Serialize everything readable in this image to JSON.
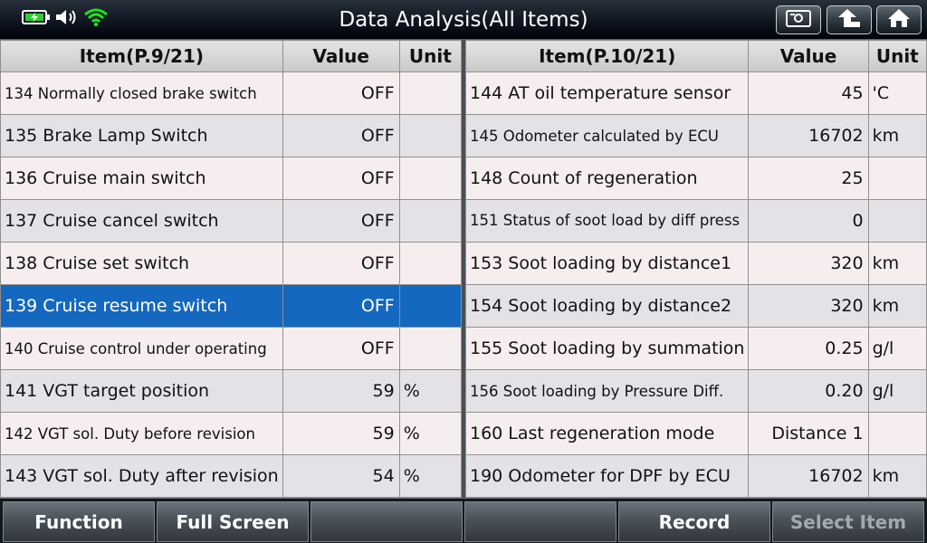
{
  "app": {
    "title": "Data Analysis(All Items)"
  },
  "status_icons": [
    "battery-icon",
    "speaker-icon",
    "wifi-icon"
  ],
  "toolbar_icons": [
    "screenshot-icon",
    "back-icon",
    "home-icon"
  ],
  "colors": {
    "selected_row": "#1468bf",
    "row_odd": "#f6eeee",
    "row_even": "#e5e2e7",
    "wifi": "#19e619",
    "battery": "#2fd02f"
  },
  "left": {
    "headers": {
      "item": "Item(P.9/21)",
      "value": "Value",
      "unit": "Unit"
    },
    "rows": [
      {
        "item": "134 Normally closed brake switch",
        "value": "OFF",
        "unit": ""
      },
      {
        "item": "135 Brake Lamp Switch",
        "value": "OFF",
        "unit": ""
      },
      {
        "item": "136 Cruise main switch",
        "value": "OFF",
        "unit": ""
      },
      {
        "item": "137 Cruise cancel switch",
        "value": "OFF",
        "unit": ""
      },
      {
        "item": "138 Cruise set switch",
        "value": "OFF",
        "unit": ""
      },
      {
        "item": "139 Cruise resume switch",
        "value": "OFF",
        "unit": ""
      },
      {
        "item": "140 Cruise control under operating",
        "value": "OFF",
        "unit": ""
      },
      {
        "item": "141 VGT target position",
        "value": "59",
        "unit": "%"
      },
      {
        "item": "142 VGT sol. Duty before revision",
        "value": "59",
        "unit": "%"
      },
      {
        "item": "143 VGT sol. Duty after revision",
        "value": "54",
        "unit": "%"
      }
    ]
  },
  "right": {
    "headers": {
      "item": "Item(P.10/21)",
      "value": "Value",
      "unit": "Unit"
    },
    "rows": [
      {
        "item": "144 AT oil temperature sensor",
        "value": "45",
        "unit": "'C"
      },
      {
        "item": "145 Odometer calculated by ECU",
        "value": "16702",
        "unit": "km"
      },
      {
        "item": "148 Count of regeneration",
        "value": "25",
        "unit": ""
      },
      {
        "item": "151 Status of soot load by diff press",
        "value": "0",
        "unit": ""
      },
      {
        "item": "153 Soot loading by distance1",
        "value": "320",
        "unit": "km"
      },
      {
        "item": "154 Soot loading by distance2",
        "value": "320",
        "unit": "km"
      },
      {
        "item": "155 Soot loading by summation",
        "value": "0.25",
        "unit": "g/l"
      },
      {
        "item": "156 Soot loading by Pressure Diff.",
        "value": "0.20",
        "unit": "g/l"
      },
      {
        "item": "160 Last regeneration mode",
        "value": "Distance 1",
        "unit": ""
      },
      {
        "item": "190 Odometer for DPF by ECU",
        "value": "16702",
        "unit": "km"
      }
    ]
  },
  "bottom": {
    "function": "Function",
    "full_screen": "Full Screen",
    "blank1": "",
    "blank2": "",
    "record": "Record",
    "select_item": "Select Item"
  }
}
